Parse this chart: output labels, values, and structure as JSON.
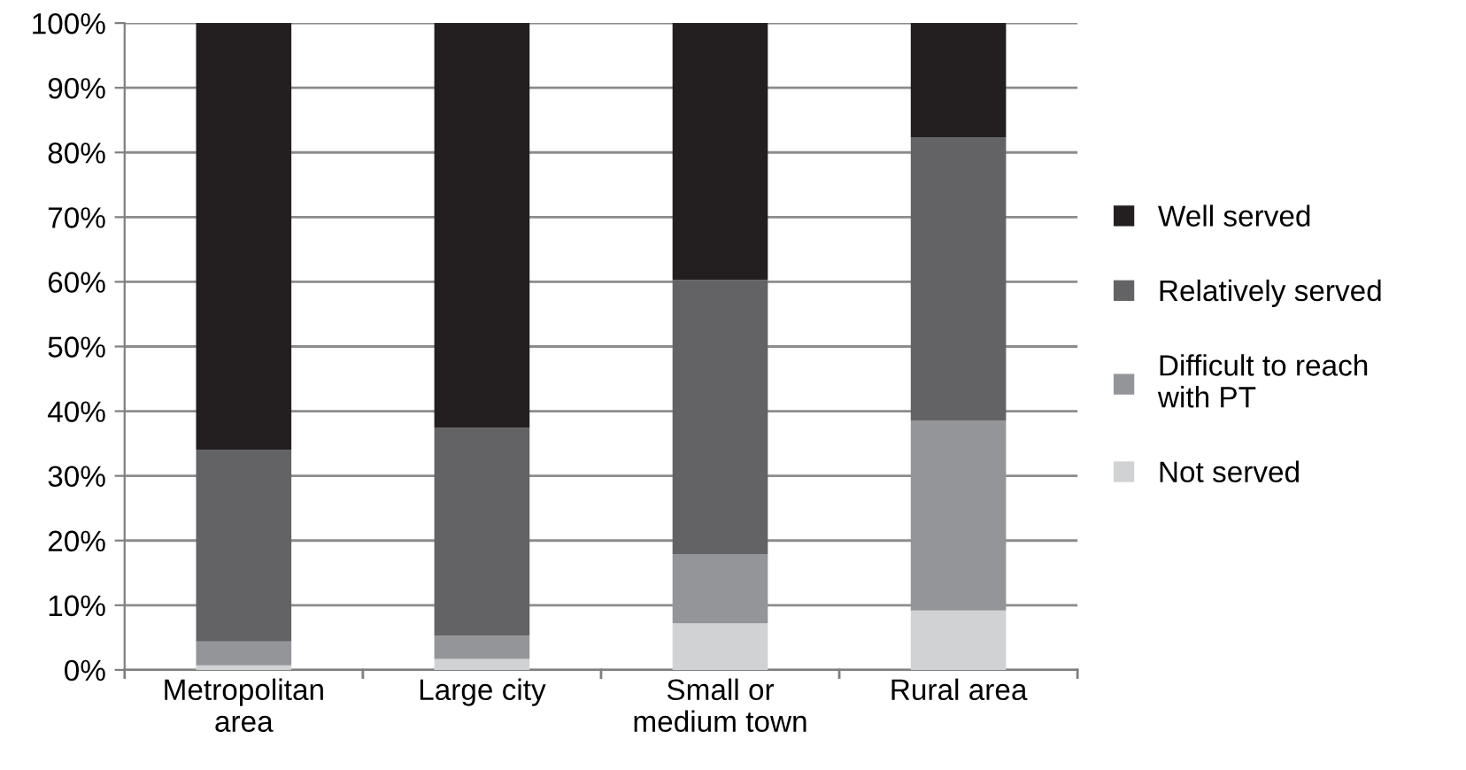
{
  "chart_data": {
    "type": "bar",
    "stacked": true,
    "categories": [
      "Metropolitan\narea",
      "Large city",
      "Small or\nmedium town",
      "Rural area"
    ],
    "series": [
      {
        "name": "Not served",
        "color": "#d1d2d4",
        "values": [
          0.7,
          1.7,
          7.2,
          9.2
        ]
      },
      {
        "name": "Difficult to reach\nwith PT",
        "color": "#939598",
        "values": [
          3.7,
          3.6,
          10.7,
          29.3
        ]
      },
      {
        "name": "Relatively served",
        "color": "#636365",
        "values": [
          29.6,
          32.1,
          42.4,
          43.8
        ]
      },
      {
        "name": "Well served",
        "color": "#231f20",
        "values": [
          66.0,
          62.6,
          39.7,
          17.7
        ]
      }
    ],
    "ylim": [
      0,
      100
    ],
    "yticks": [
      {
        "value": 0,
        "label": "0%"
      },
      {
        "value": 10,
        "label": "10%"
      },
      {
        "value": 20,
        "label": "20%"
      },
      {
        "value": 30,
        "label": "30%"
      },
      {
        "value": 40,
        "label": "40%"
      },
      {
        "value": 50,
        "label": "50%"
      },
      {
        "value": 60,
        "label": "60%"
      },
      {
        "value": 70,
        "label": "70%"
      },
      {
        "value": 80,
        "label": "80%"
      },
      {
        "value": 90,
        "label": "90%"
      },
      {
        "value": 100,
        "label": "100%"
      }
    ],
    "grid": "y",
    "legend": "right"
  }
}
